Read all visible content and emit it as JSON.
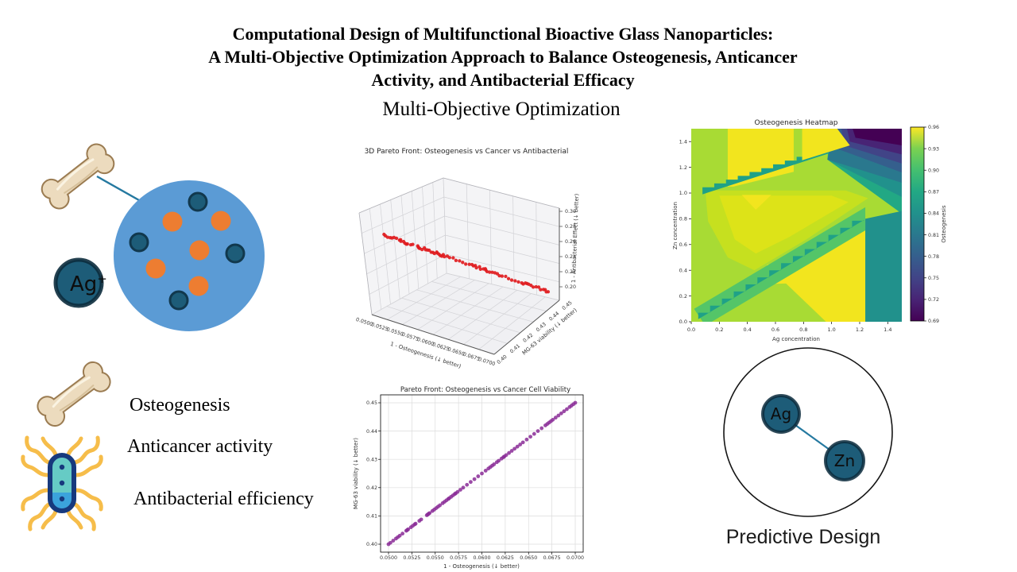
{
  "slide": {
    "title_lines": [
      "Computational Design of Multifunctional Bioactive Glass Nanoparticles:",
      "A Multi-Objective Optimization Approach to Balance Osteogenesis, Anticancer",
      "Activity, and Antibacterial Efficacy"
    ],
    "subtitle": "Multi-Objective Optimization",
    "legend": {
      "osteogenesis": "Osteogenesis",
      "anticancer": "Anticancer activity",
      "antibacterial": "Antibacterial efficiency"
    },
    "ion_label": "Ag",
    "ion_charge": "+",
    "network": {
      "node_a": "Ag",
      "node_b": "Zn",
      "caption": "Predictive Design"
    }
  },
  "colors": {
    "nanoparticle_blue": "#5b9bd5",
    "dopant_orange": "#ed7d31",
    "ion_teal": "#1d5c78",
    "ion_edge": "#0c2c3d",
    "arrow_teal": "#2579a0",
    "bone_fill": "#ecdbbe",
    "bone_outline": "#9b7c52",
    "bacteria_outline": "#17397d",
    "bacteria_top": "#66cbc5",
    "bacteria_bottom": "#3ba3dc",
    "flagella_yellow": "#f6bd4a",
    "scatter3d_red": "#e01b1e",
    "scatter2d_purple": "#8a2b96",
    "viridis_top_to_bottom": [
      "#fde725",
      "#7ad151",
      "#44bf70",
      "#22a884",
      "#21918c",
      "#2a788e",
      "#355f8d",
      "#414487",
      "#482475",
      "#440154"
    ]
  },
  "chart_data": [
    {
      "id": "pareto3d",
      "type": "scatter",
      "projection": "3d",
      "title": "3D Pareto Front: Osteogenesis vs Cancer vs Antibacterial",
      "xlabel": "1 - Osteogenesis (↓ better)",
      "ylabel": "MG-63 viability (↓ better)",
      "zlabel": "1 - Antibacterial Effect (↓ better)",
      "xlim": [
        0.05,
        0.07
      ],
      "ylim": [
        0.4,
        0.45
      ],
      "zlim": [
        0.2,
        0.3
      ],
      "xticks": [
        "0.0500",
        "0.0525",
        "0.0550",
        "0.0575",
        "0.0600",
        "0.0625",
        "0.0650",
        "0.0675",
        "0.0700"
      ],
      "yticks": [
        "0.40",
        "0.41",
        "0.42",
        "0.43",
        "0.44",
        "0.45"
      ],
      "zticks": [
        "0.20",
        "0.22",
        "0.24",
        "0.26",
        "0.28",
        "0.30"
      ],
      "marker_color": "#e01b1e",
      "relation": "points lie on a line: y = 0.40 + 2.5·(x − 0.05), z ≈ 0.275 − 3.75·(x − 0.05)",
      "x": [
        0.05,
        0.0502,
        0.0505,
        0.0508,
        0.051,
        0.0512,
        0.0515,
        0.0519,
        0.052,
        0.0521,
        0.0524,
        0.0526,
        0.0528,
        0.0529,
        0.0533,
        0.0535,
        0.0541,
        0.0542,
        0.0543,
        0.0544,
        0.0547,
        0.0549,
        0.0551,
        0.0553,
        0.0555,
        0.0558,
        0.056,
        0.0562,
        0.0564,
        0.0565,
        0.0567,
        0.0569,
        0.0571,
        0.0572,
        0.0574,
        0.0577,
        0.058,
        0.0584,
        0.0588,
        0.0592,
        0.0596,
        0.06,
        0.0604,
        0.0607,
        0.0609,
        0.0611,
        0.0613,
        0.0616,
        0.0618,
        0.0621,
        0.0623,
        0.0624,
        0.0626,
        0.0629,
        0.0632,
        0.0635,
        0.0638,
        0.0641,
        0.0644,
        0.0648,
        0.0652,
        0.0656,
        0.066,
        0.0664,
        0.0668,
        0.067,
        0.0672,
        0.0674,
        0.0676,
        0.0679,
        0.0682,
        0.0685,
        0.0688,
        0.0691,
        0.0694,
        0.0696,
        0.0698,
        0.07
      ]
    },
    {
      "id": "osteogenesis_heatmap",
      "type": "heatmap",
      "title": "Osteogenesis Heatmap",
      "xlabel": "Ag concentration",
      "ylabel": "Zn concentration",
      "xlim": [
        0,
        1.5
      ],
      "ylim": [
        0,
        1.5
      ],
      "xticks": [
        "0.0",
        "0.2",
        "0.4",
        "0.6",
        "0.8",
        "1.0",
        "1.2",
        "1.4"
      ],
      "yticks": [
        "0.0",
        "0.2",
        "0.4",
        "0.6",
        "0.8",
        "1.0",
        "1.2",
        "1.4"
      ],
      "colorbar": {
        "label": "Osteogenesis",
        "colormap": "viridis",
        "range": [
          0.69,
          0.96
        ],
        "ticks": [
          "0.96",
          "0.93",
          "0.90",
          "0.87",
          "0.84",
          "0.81",
          "0.78",
          "0.75",
          "0.72",
          "0.69"
        ]
      },
      "features": [
        "bright yellow maxima (~0.96) band at Ag 0.25-0.75 for Zn>1.05, patch at Ag 0.8-1.05 top, and large region Ag 0.55-1.25 below Zn~0.8",
        "light-green plateau (~0.90-0.93) over most of the map",
        "narrow stepped teal valleys (~0.84) along diagonals from (0.1,0.05) to (1.2,0.8) and from (0.1,1.0) to (1.15,1.4)",
        "dark purple minimum (~0.69) in the top-right corner with nested contour bands",
        "teal band (~0.81) for Ag>1.25 below Zn~0.85"
      ]
    },
    {
      "id": "pareto2d",
      "type": "scatter",
      "title": "Pareto Front: Osteogenesis vs Cancer Cell Viability",
      "xlabel": "1 - Osteogenesis (↓ better)",
      "ylabel": "MG-63 viability (↓ better)",
      "xlim": [
        0.05,
        0.07
      ],
      "ylim": [
        0.4,
        0.45
      ],
      "xticks": [
        "0.0500",
        "0.0525",
        "0.0550",
        "0.0575",
        "0.0600",
        "0.0625",
        "0.0650",
        "0.0675",
        "0.0700"
      ],
      "yticks": [
        "0.40",
        "0.41",
        "0.42",
        "0.43",
        "0.44",
        "0.45"
      ],
      "marker_color": "#8a2b96",
      "relation": "y = 0.40 + 2.5·(x − 0.05)",
      "x_shared_with": "pareto3d",
      "grid": true
    }
  ]
}
